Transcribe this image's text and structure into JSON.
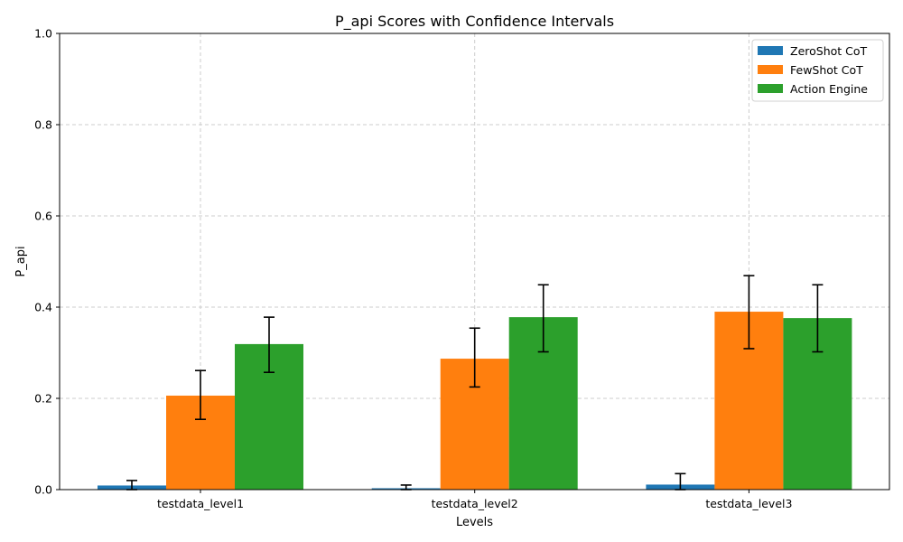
{
  "chart_data": {
    "type": "bar",
    "title": "P_api Scores with Confidence Intervals",
    "xlabel": "Levels",
    "ylabel": "P_api",
    "categories": [
      "testdata_level1",
      "testdata_level2",
      "testdata_level3"
    ],
    "ylim": [
      0,
      1.0
    ],
    "yticks": [
      "0.0",
      "0.2",
      "0.4",
      "0.6",
      "0.8",
      "1.0"
    ],
    "grid": true,
    "legend_position": "top-right",
    "series": [
      {
        "name": "ZeroShot CoT",
        "color": "#1f77b4",
        "values": [
          0.009,
          0.003,
          0.011
        ],
        "error_low": [
          0.0,
          0.0,
          0.0
        ],
        "error_high": [
          0.02,
          0.01,
          0.035
        ]
      },
      {
        "name": "FewShot CoT",
        "color": "#ff7f0e",
        "values": [
          0.206,
          0.287,
          0.39
        ],
        "error_low": [
          0.154,
          0.225,
          0.309
        ],
        "error_high": [
          0.261,
          0.354,
          0.469
        ]
      },
      {
        "name": "Action Engine",
        "color": "#2ca02c",
        "values": [
          0.319,
          0.378,
          0.376
        ],
        "error_low": [
          0.257,
          0.302,
          0.302
        ],
        "error_high": [
          0.378,
          0.449,
          0.449
        ]
      }
    ]
  }
}
